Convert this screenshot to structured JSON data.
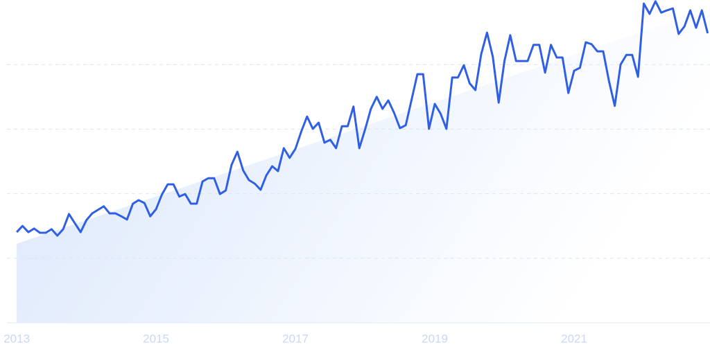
{
  "chart_data": {
    "type": "line",
    "x": [
      2013.0,
      2013.083,
      2013.167,
      2013.25,
      2013.333,
      2013.417,
      2013.5,
      2013.583,
      2013.667,
      2013.75,
      2013.833,
      2013.917,
      2014.0,
      2014.083,
      2014.167,
      2014.25,
      2014.333,
      2014.417,
      2014.5,
      2014.583,
      2014.667,
      2014.75,
      2014.833,
      2014.917,
      2015.0,
      2015.083,
      2015.167,
      2015.25,
      2015.333,
      2015.417,
      2015.5,
      2015.583,
      2015.667,
      2015.75,
      2015.833,
      2015.917,
      2016.0,
      2016.083,
      2016.167,
      2016.25,
      2016.333,
      2016.417,
      2016.5,
      2016.583,
      2016.667,
      2016.75,
      2016.833,
      2016.917,
      2017.0,
      2017.083,
      2017.167,
      2017.25,
      2017.333,
      2017.417,
      2017.5,
      2017.583,
      2017.667,
      2017.75,
      2017.833,
      2017.917,
      2018.0,
      2018.083,
      2018.167,
      2018.25,
      2018.333,
      2018.417,
      2018.5,
      2018.583,
      2018.667,
      2018.75,
      2018.833,
      2018.917,
      2019.0,
      2019.083,
      2019.167,
      2019.25,
      2019.333,
      2019.417,
      2019.5,
      2019.583,
      2019.667,
      2019.75,
      2019.833,
      2019.917,
      2020.0,
      2020.083,
      2020.167,
      2020.25,
      2020.333,
      2020.417,
      2020.5,
      2020.583,
      2020.667,
      2020.75,
      2020.833,
      2020.917,
      2021.0,
      2021.083,
      2021.167,
      2021.25,
      2021.333,
      2021.417,
      2021.5,
      2021.583,
      2021.667,
      2021.75,
      2021.833,
      2021.917,
      2022.0,
      2022.083,
      2022.167,
      2022.25,
      2022.333,
      2022.417,
      2022.5,
      2022.583,
      2022.667,
      2022.75,
      2022.833,
      2022.917
    ],
    "series": [
      {
        "color": "#2f5fe3",
        "values": [
          28.1,
          30.0,
          28.1,
          29.2,
          27.9,
          27.9,
          29.0,
          27.0,
          29.0,
          33.7,
          30.9,
          28.1,
          31.8,
          33.9,
          35.0,
          36.1,
          33.9,
          33.9,
          33.0,
          32.0,
          36.9,
          38.0,
          37.1,
          33.0,
          35.2,
          39.7,
          42.9,
          42.9,
          39.1,
          39.9,
          36.9,
          36.9,
          43.8,
          44.8,
          44.8,
          39.9,
          41.0,
          48.9,
          53.0,
          47.2,
          44.2,
          43.1,
          41.2,
          45.7,
          48.5,
          47.0,
          54.1,
          51.1,
          53.9,
          59.2,
          63.9,
          60.1,
          62.0,
          55.8,
          56.7,
          54.1,
          60.9,
          60.9,
          67.0,
          54.1,
          59.9,
          66.3,
          70.0,
          66.3,
          68.9,
          65.0,
          60.3,
          61.2,
          69.1,
          77.0,
          77.0,
          60.1,
          67.8,
          64.8,
          60.1,
          76.0,
          76.0,
          79.8,
          74.2,
          72.1,
          83.3,
          89.9,
          82.4,
          68.2,
          81.1,
          89.1,
          81.1,
          81.1,
          81.1,
          86.1,
          86.1,
          77.5,
          86.1,
          82.2,
          82.2,
          71.2,
          78.1,
          79.0,
          86.9,
          86.3,
          84.1,
          84.1,
          74.9,
          67.2,
          80.0,
          83.0,
          83.0,
          76.2,
          98.9,
          95.7,
          99.6,
          96.1,
          96.8,
          97.4,
          89.5,
          91.8,
          96.8,
          91.4,
          96.8,
          89.7
        ]
      }
    ],
    "trend": [
      24.5,
      97
    ],
    "xlim": [
      2012.76,
      2022.95
    ],
    "xticks": [
      2013,
      2015,
      2017,
      2019,
      2021
    ],
    "ylim": [
      0,
      100
    ],
    "ygrid": [
      20,
      40,
      60,
      80
    ]
  }
}
